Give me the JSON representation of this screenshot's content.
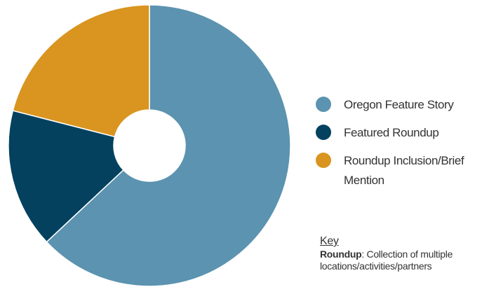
{
  "chart_data": {
    "type": "donut",
    "categories": [
      "Oregon Feature Story",
      "Featured Roundup",
      "Roundup Inclusion/Brief Mention"
    ],
    "values": [
      63,
      16,
      21
    ],
    "colors": [
      "#5b93b0",
      "#03415f",
      "#d9951f"
    ],
    "legend": "right"
  },
  "key": {
    "title": "Key",
    "term": "Roundup",
    "definition": ": Collection of multiple locations/activities/partners"
  }
}
